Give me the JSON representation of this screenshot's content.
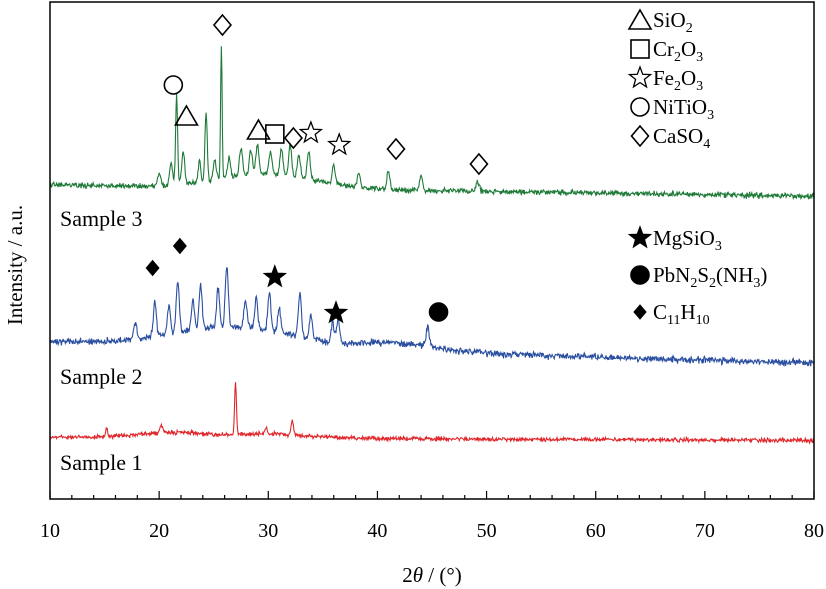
{
  "chart_data": {
    "type": "line",
    "title": "",
    "xlabel": {
      "prefix": "2",
      "theta": "θ",
      "suffix": " / (°)"
    },
    "ylabel": "Intensity / a.u.",
    "xlim": [
      10,
      80
    ],
    "x_ticks": [
      10,
      20,
      30,
      40,
      50,
      60,
      70,
      80
    ],
    "y_ticks_shown": false,
    "series": [
      {
        "name": "Sample 1",
        "label": "Sample 1",
        "color": "#e0262b",
        "baseline": 437,
        "slope": 0.05,
        "noise": 3,
        "humps": [
          [
            21,
            4,
            5
          ],
          [
            30,
            5,
            4
          ]
        ],
        "peaks": [
          [
            15.2,
            0.15,
            8
          ],
          [
            20.2,
            0.2,
            8
          ],
          [
            27.0,
            0.12,
            52
          ],
          [
            29.8,
            0.15,
            6
          ],
          [
            32.2,
            0.15,
            14
          ]
        ]
      },
      {
        "name": "Sample 2",
        "label": "Sample 2",
        "color": "#2b4fa0",
        "baseline": 342,
        "slope": 0.3,
        "noise": 5,
        "humps": [
          [
            27,
            8,
            20
          ],
          [
            42,
            5,
            8
          ]
        ],
        "peaks": [
          [
            17.8,
            0.2,
            16
          ],
          [
            19.6,
            0.2,
            34
          ],
          [
            20.9,
            0.2,
            30
          ],
          [
            21.7,
            0.2,
            52
          ],
          [
            23.1,
            0.2,
            30
          ],
          [
            23.8,
            0.2,
            44
          ],
          [
            25.4,
            0.2,
            38
          ],
          [
            26.2,
            0.2,
            60
          ],
          [
            27.9,
            0.2,
            28
          ],
          [
            28.9,
            0.2,
            30
          ],
          [
            30.1,
            0.2,
            38
          ],
          [
            31.0,
            0.2,
            24
          ],
          [
            32.9,
            0.2,
            44
          ],
          [
            33.9,
            0.2,
            24
          ],
          [
            35.9,
            0.2,
            20
          ],
          [
            36.4,
            0.2,
            24
          ],
          [
            44.6,
            0.2,
            18
          ]
        ]
      },
      {
        "name": "Sample 3",
        "label": "Sample 3",
        "color": "#1f7a38",
        "baseline": 185,
        "slope": 0.16,
        "noise": 4,
        "humps": [
          [
            30,
            6,
            14
          ]
        ],
        "peaks": [
          [
            20.0,
            0.2,
            12
          ],
          [
            21.1,
            0.2,
            22
          ],
          [
            21.6,
            0.13,
            88
          ],
          [
            22.2,
            0.2,
            32
          ],
          [
            23.7,
            0.15,
            24
          ],
          [
            24.3,
            0.15,
            70
          ],
          [
            25.1,
            0.2,
            20
          ],
          [
            25.7,
            0.1,
            135
          ],
          [
            26.4,
            0.2,
            20
          ],
          [
            27.5,
            0.2,
            28
          ],
          [
            28.4,
            0.2,
            26
          ],
          [
            29.0,
            0.2,
            30
          ],
          [
            30.2,
            0.2,
            22
          ],
          [
            31.2,
            0.2,
            26
          ],
          [
            32.0,
            0.2,
            30
          ],
          [
            32.8,
            0.2,
            22
          ],
          [
            33.7,
            0.2,
            28
          ],
          [
            36.0,
            0.2,
            18
          ],
          [
            38.3,
            0.2,
            14
          ],
          [
            41.0,
            0.2,
            18
          ],
          [
            44.0,
            0.2,
            14
          ],
          [
            49.2,
            0.2,
            10
          ]
        ]
      }
    ],
    "annotations": [
      {
        "phase": "CaSO4",
        "symbol": "diamond",
        "x": 25.8,
        "y": 25,
        "stroke": "#000000",
        "fill": "none"
      },
      {
        "phase": "NiTiO3",
        "symbol": "circle",
        "x": 21.3,
        "y": 85,
        "stroke": "#000000",
        "fill": "none"
      },
      {
        "phase": "SiO2",
        "symbol": "triangle",
        "x": 22.5,
        "y": 116,
        "stroke": "#000000",
        "fill": "none"
      },
      {
        "phase": "SiO2",
        "symbol": "triangle",
        "x": 29.1,
        "y": 130,
        "stroke": "#000000",
        "fill": "none"
      },
      {
        "phase": "Cr2O3",
        "symbol": "square",
        "x": 30.6,
        "y": 134,
        "stroke": "#000000",
        "fill": "none"
      },
      {
        "phase": "CaSO4",
        "symbol": "diamond",
        "x": 32.3,
        "y": 138,
        "stroke": "#000000",
        "fill": "none"
      },
      {
        "phase": "Fe2O3",
        "symbol": "star",
        "x": 33.9,
        "y": 133,
        "stroke": "#000000",
        "fill": "none"
      },
      {
        "phase": "Fe2O3",
        "symbol": "star",
        "x": 36.5,
        "y": 145,
        "stroke": "#000000",
        "fill": "none"
      },
      {
        "phase": "CaSO4",
        "symbol": "diamond",
        "x": 41.7,
        "y": 149,
        "stroke": "#000000",
        "fill": "none"
      },
      {
        "phase": "CaSO4",
        "symbol": "diamond",
        "x": 49.3,
        "y": 164,
        "stroke": "#000000",
        "fill": "none"
      },
      {
        "phase": "C11H10",
        "symbol": "diamond",
        "x": 19.4,
        "y": 268,
        "stroke": "#000000",
        "fill": "#000000"
      },
      {
        "phase": "C11H10",
        "symbol": "diamond",
        "x": 21.9,
        "y": 246,
        "stroke": "#000000",
        "fill": "#000000"
      },
      {
        "phase": "MgSiO3",
        "symbol": "star",
        "x": 30.6,
        "y": 277,
        "stroke": "#000000",
        "fill": "#000000"
      },
      {
        "phase": "MgSiO3",
        "symbol": "star",
        "x": 36.2,
        "y": 313,
        "stroke": "#000000",
        "fill": "#000000"
      },
      {
        "phase": "PbN2S2(NH3)",
        "symbol": "circle",
        "x": 45.6,
        "y": 312,
        "stroke": "#000000",
        "fill": "#000000"
      }
    ],
    "legend_groups": [
      {
        "placement": "top-right",
        "items": [
          {
            "symbol": "triangle",
            "fill": "none",
            "parts": [
              [
                "SiO",
                ""
              ],
              [
                "2",
                "sub"
              ]
            ]
          },
          {
            "symbol": "square",
            "fill": "none",
            "parts": [
              [
                "Cr",
                ""
              ],
              [
                "2",
                "sub"
              ],
              [
                "O",
                ""
              ],
              [
                "3",
                "sub"
              ]
            ]
          },
          {
            "symbol": "star",
            "fill": "none",
            "parts": [
              [
                "Fe",
                ""
              ],
              [
                "2",
                "sub"
              ],
              [
                "O",
                ""
              ],
              [
                "3",
                "sub"
              ]
            ]
          },
          {
            "symbol": "circle",
            "fill": "none",
            "parts": [
              [
                "NiTiO",
                ""
              ],
              [
                "3",
                "sub"
              ]
            ]
          },
          {
            "symbol": "diamond",
            "fill": "none",
            "parts": [
              [
                "CaSO",
                ""
              ],
              [
                "4",
                "sub"
              ]
            ]
          }
        ]
      },
      {
        "placement": "middle-right",
        "items": [
          {
            "symbol": "star",
            "fill": "#000000",
            "parts": [
              [
                "MgSiO",
                ""
              ],
              [
                "3",
                "sub"
              ]
            ]
          },
          {
            "symbol": "circle",
            "fill": "#000000",
            "parts": [
              [
                "PbN",
                ""
              ],
              [
                "2",
                "sub"
              ],
              [
                "S",
                ""
              ],
              [
                "2",
                "sub"
              ],
              [
                "(NH",
                ""
              ],
              [
                "3",
                "sub"
              ],
              [
                ")",
                ""
              ]
            ]
          },
          {
            "symbol": "smalldiamond",
            "fill": "#000000",
            "parts": [
              [
                "C",
                ""
              ],
              [
                "11",
                "sub"
              ],
              [
                "H",
                ""
              ],
              [
                "10",
                "sub"
              ]
            ]
          }
        ]
      }
    ]
  }
}
